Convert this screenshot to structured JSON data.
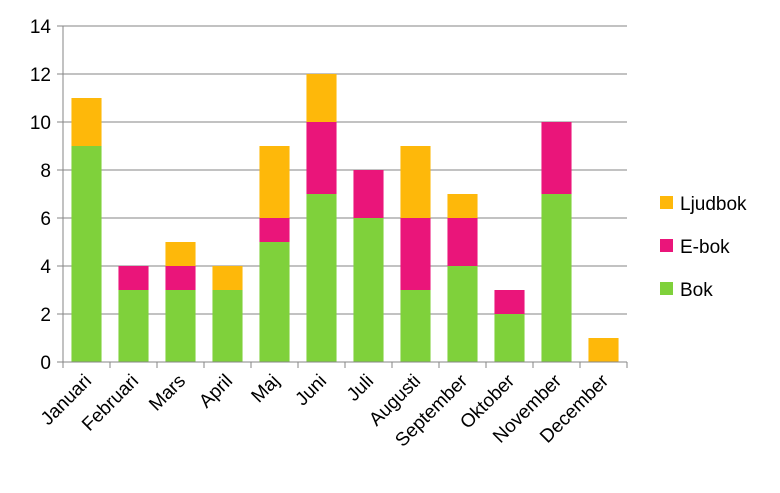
{
  "chart_data": {
    "type": "bar",
    "stacked": true,
    "categories": [
      "Januari",
      "Februari",
      "Mars",
      "April",
      "Maj",
      "Juni",
      "Juli",
      "Augusti",
      "September",
      "Oktober",
      "November",
      "December"
    ],
    "series": [
      {
        "name": "Bok",
        "color": "#7fd13b",
        "values": [
          9,
          3,
          3,
          3,
          5,
          7,
          6,
          3,
          4,
          2,
          7,
          0
        ]
      },
      {
        "name": "E-bok",
        "color": "#ea157a",
        "values": [
          0,
          1,
          1,
          0,
          1,
          3,
          2,
          3,
          2,
          1,
          3,
          0
        ]
      },
      {
        "name": "Ljudbok",
        "color": "#feb80a",
        "values": [
          2,
          0,
          1,
          1,
          3,
          2,
          0,
          3,
          1,
          0,
          0,
          1
        ]
      }
    ],
    "ylim": [
      0,
      14
    ],
    "yticks": [
      0,
      2,
      4,
      6,
      8,
      10,
      12,
      14
    ],
    "grid": true,
    "legend": "right",
    "title": "",
    "xlabel": "",
    "ylabel": ""
  }
}
